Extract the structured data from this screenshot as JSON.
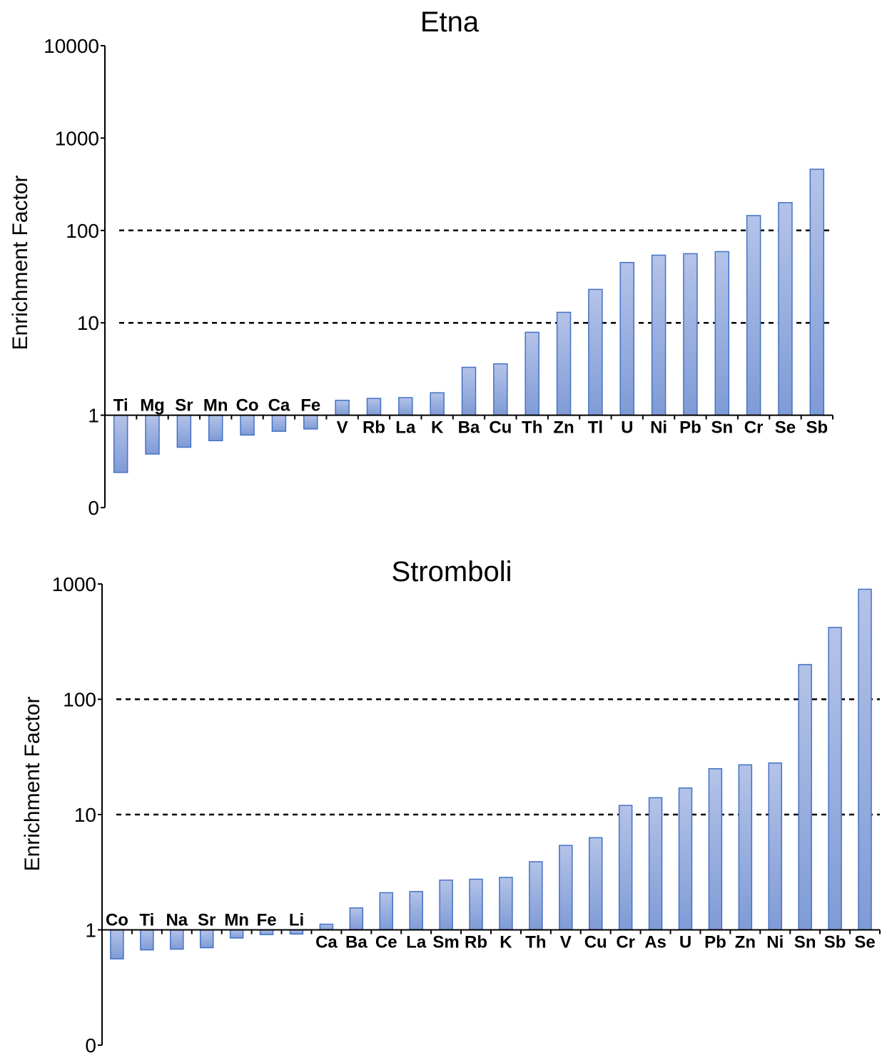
{
  "colors": {
    "bar_top": "#b4c3e8",
    "bar_bottom": "#7f9bd6",
    "bar_stroke": "#4472c4",
    "reference_line": "#000000"
  },
  "chart_data": [
    {
      "type": "bar",
      "title": "Etna",
      "ylabel": "Enrichment Factor",
      "xlabel": "",
      "yscale": "log",
      "ylim": [
        0.1,
        10000
      ],
      "baseline": 1,
      "ytick_values": [
        0.1,
        1,
        10,
        100,
        1000,
        10000
      ],
      "ytick_labels": [
        "0",
        "1",
        "10",
        "100",
        "1000",
        "10000"
      ],
      "reference_lines": [
        10,
        100
      ],
      "grid": false,
      "categories": [
        "Ti",
        "Mg",
        "Sr",
        "Mn",
        "Co",
        "Ca",
        "Fe",
        "V",
        "Rb",
        "La",
        "K",
        "Ba",
        "Cu",
        "Th",
        "Zn",
        "Tl",
        "U",
        "Ni",
        "Pb",
        "Sn",
        "Cr",
        "Se",
        "Sb"
      ],
      "values": [
        0.24,
        0.38,
        0.45,
        0.53,
        0.61,
        0.67,
        0.71,
        1.45,
        1.52,
        1.55,
        1.75,
        3.3,
        3.6,
        7.9,
        13,
        23,
        45,
        54,
        56,
        59,
        145,
        200,
        460
      ]
    },
    {
      "type": "bar",
      "title": "Stromboli",
      "ylabel": "Enrichment Factor",
      "xlabel": "",
      "yscale": "log",
      "ylim": [
        0.1,
        1000
      ],
      "baseline": 1,
      "ytick_values": [
        0.1,
        1,
        10,
        100,
        1000
      ],
      "ytick_labels": [
        "0",
        "1",
        "10",
        "100",
        "1000"
      ],
      "reference_lines": [
        10,
        100
      ],
      "grid": false,
      "categories": [
        "Co",
        "Ti",
        "Na",
        "Sr",
        "Mn",
        "Fe",
        "Li",
        "Ca",
        "Ba",
        "Ce",
        "La",
        "Sm",
        "Rb",
        "K",
        "Th",
        "V",
        "Cu",
        "Cr",
        "As",
        "U",
        "Pb",
        "Zn",
        "Ni",
        "Sn",
        "Sb",
        "Se"
      ],
      "values": [
        0.56,
        0.67,
        0.68,
        0.7,
        0.85,
        0.91,
        0.92,
        1.12,
        1.55,
        2.1,
        2.15,
        2.7,
        2.75,
        2.85,
        3.9,
        5.4,
        6.3,
        12,
        14,
        17,
        25,
        27,
        28,
        200,
        420,
        900
      ]
    }
  ]
}
